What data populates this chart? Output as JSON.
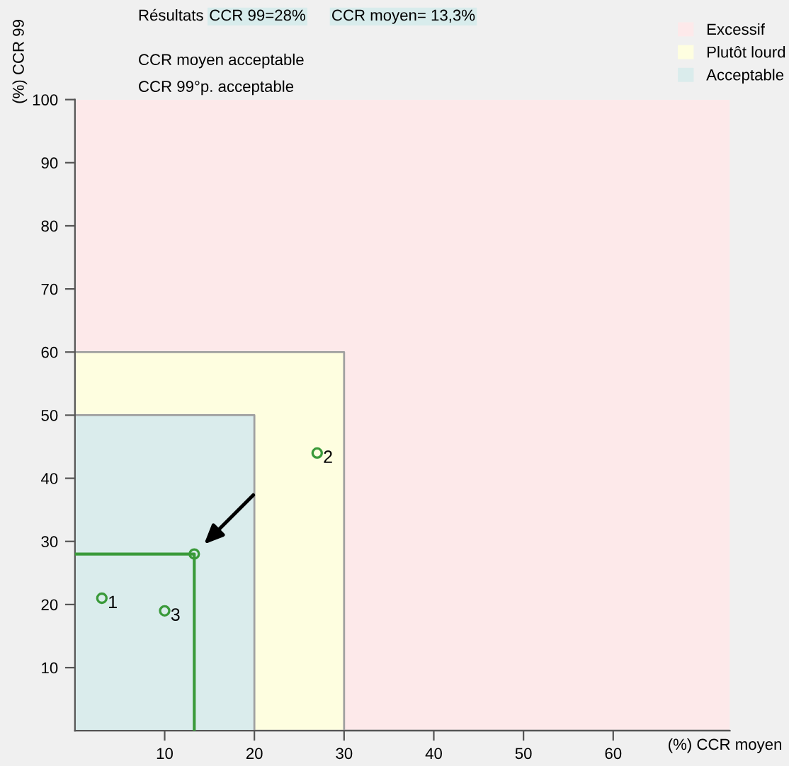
{
  "chart_data": {
    "type": "scatter",
    "xlabel": "(%) CCR moyen",
    "ylabel": "(%) CCR 99",
    "annotations": [
      "Résultats",
      "CCR 99=28%",
      "CCR moyen= 13,3%",
      "CCR moyen acceptable",
      "CCR 99°p. acceptable",
      {
        "text": "1",
        "x": 3,
        "y": 21
      },
      {
        "text": "2",
        "x": 27,
        "y": 44
      },
      {
        "text": "3",
        "x": 10,
        "y": 19
      }
    ],
    "xlim": [
      0,
      73
    ],
    "ylim": [
      0,
      100
    ],
    "xticks": [
      10,
      20,
      30,
      40,
      50,
      60
    ],
    "yticks": [
      10,
      20,
      30,
      40,
      50,
      60,
      70,
      80,
      90,
      100
    ],
    "grid": false,
    "legend": "top right",
    "stacked": true,
    "series": [
      {
        "name": "Acceptable",
        "type": "area",
        "color": "#daecec",
        "x": [
          0,
          20,
          20,
          30,
          30,
          73
        ],
        "values": [
          50,
          50,
          0,
          0,
          0,
          0
        ]
      },
      {
        "name": "Plutôt lourd",
        "type": "area",
        "color": "#fefee0",
        "x": [
          0,
          20,
          20,
          30,
          30,
          73
        ],
        "values": [
          10,
          10,
          60,
          60,
          0,
          0
        ]
      },
      {
        "name": "Excessif",
        "type": "area",
        "color": "#fde9ea",
        "x": [
          0,
          20,
          20,
          30,
          30,
          73
        ],
        "values": [
          40,
          40,
          40,
          40,
          100,
          100
        ]
      },
      {
        "type": "line",
        "color": "#3a9a3a",
        "x": [
          0,
          13.3,
          13.3
        ],
        "values": [
          28,
          28,
          0
        ],
        "marker": "none"
      },
      {
        "color": "#3a9a3a",
        "x": [
          13.3
        ],
        "values": [
          28
        ],
        "marker": "circle"
      },
      {
        "color": "#3a9a3a",
        "x": [
          3,
          27,
          10
        ],
        "values": [
          21,
          44,
          19
        ],
        "marker": "circle"
      }
    ]
  }
}
